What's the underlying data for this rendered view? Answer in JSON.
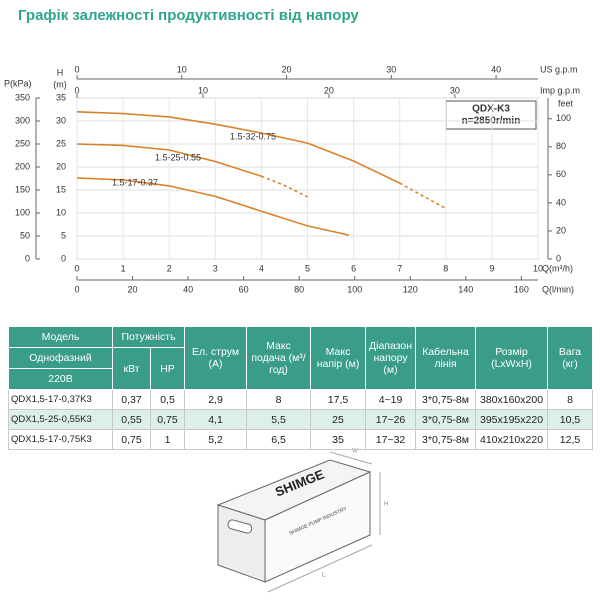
{
  "title": "Графік залежності продуктивності від напору",
  "chart_data": {
    "type": "line",
    "x_label": "Q(m³/h)",
    "y_label": "H",
    "y_label_unit": "(m)",
    "xlim": [
      0,
      10
    ],
    "xticks": [
      0,
      1,
      2,
      3,
      4,
      5,
      6,
      7,
      8,
      9,
      10
    ],
    "ylim": [
      0,
      35
    ],
    "yticks": [
      0,
      5,
      10,
      15,
      20,
      25,
      30,
      35
    ],
    "grid": true,
    "annotations": [
      "QDX-K3",
      "n=2850r/min"
    ],
    "secondary_axes": [
      {
        "label": "P(kPa)",
        "side": "left",
        "lim": [
          0,
          350
        ],
        "ticks": [
          0,
          50,
          100,
          150,
          200,
          250,
          300,
          350
        ]
      },
      {
        "label": "feet",
        "side": "right",
        "lim": [
          0,
          114.8
        ],
        "ticks": [
          0,
          20,
          40,
          60,
          80,
          100
        ]
      },
      {
        "label": "US g.p.m",
        "side": "top",
        "lim": [
          0,
          44
        ],
        "ticks": [
          0,
          10,
          20,
          30,
          40
        ]
      },
      {
        "label": "Imp g.p.m",
        "side": "top",
        "lim": [
          0,
          36.6
        ],
        "ticks": [
          0,
          10,
          20,
          30
        ]
      },
      {
        "label": "Q(l/min)",
        "side": "bottom",
        "lim": [
          0,
          166
        ],
        "ticks": [
          0,
          20,
          40,
          60,
          80,
          100,
          120,
          140,
          160
        ]
      }
    ],
    "series": [
      {
        "name": "1.5-32-0.75",
        "color": "#d9822b",
        "x": [
          0,
          1,
          2,
          3,
          4,
          5,
          6,
          7
        ],
        "values": [
          32,
          31.6,
          30.9,
          29.3,
          27.4,
          25.2,
          21.3,
          16.5
        ],
        "dashed": {
          "x": [
            7,
            7.5,
            8
          ],
          "values": [
            16.5,
            13.7,
            11
          ]
        }
      },
      {
        "name": "1.5-25-0.55",
        "color": "#d9822b",
        "x": [
          0,
          1,
          2,
          3,
          4
        ],
        "values": [
          25,
          24.7,
          23.7,
          21.2,
          18
        ],
        "dashed": {
          "x": [
            4,
            4.5,
            5
          ],
          "values": [
            18,
            16,
            13.5
          ]
        }
      },
      {
        "name": "1.5-17-0.37",
        "color": "#d9822b",
        "x": [
          0,
          1,
          2,
          3,
          4,
          5,
          5.9
        ],
        "values": [
          17.6,
          17.2,
          15.9,
          13.6,
          10.4,
          7.2,
          5.2
        ]
      }
    ]
  },
  "table": {
    "header": [
      [
        "Модель",
        "Потужність",
        "Ел. струм (А)",
        "Макс подача (м³/год)",
        "Макс напір (м)",
        "Діапазон напору (м)",
        "Кабельна лінія",
        "Розмір (LxWxH)",
        "Вага (кг)"
      ],
      [
        "Однофазний",
        "кВт",
        "HP"
      ],
      [
        "220В"
      ]
    ],
    "rows": [
      [
        "QDX1,5-17-0,37K3",
        "0,37",
        "0,5",
        "2,9",
        "8",
        "17,5",
        "4~19",
        "3*0,75-8м",
        "380x160x200",
        "8"
      ],
      [
        "QDX1,5-25-0,55K3",
        "0,55",
        "0,75",
        "4,1",
        "5,5",
        "25",
        "17~26",
        "3*0,75-8м",
        "395x195x220",
        "10,5"
      ],
      [
        "QDX1,5-17-0,75K3",
        "0,75",
        "1",
        "5,2",
        "6,5",
        "35",
        "17~32",
        "3*0,75-8м",
        "410x210x220",
        "12,5"
      ]
    ]
  },
  "box": {
    "brand": "SHIMGE",
    "tagline": "SHIMGE PUMP INDUSTRY",
    "dimensions": [
      "W",
      "H",
      "L"
    ]
  }
}
